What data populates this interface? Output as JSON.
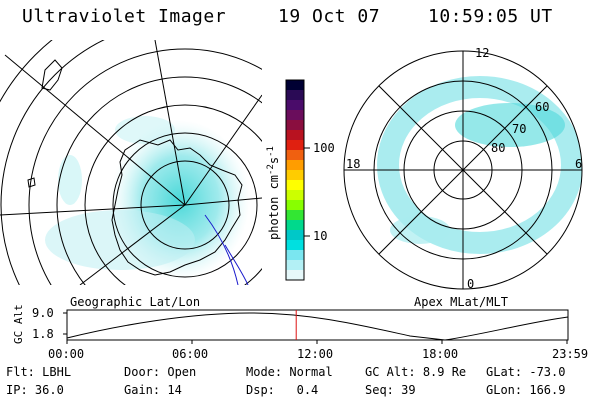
{
  "header": {
    "title": "Ultraviolet Imager",
    "date": "19 Oct 07",
    "time": "10:59:05 UT"
  },
  "left_map": {
    "label": "Geographic Lat/Lon"
  },
  "right_map": {
    "label": "Apex MLat/MLT",
    "mlt_labels": {
      "top": "12",
      "left": "18",
      "right": "6",
      "bottom": "0"
    },
    "lat_labels": [
      "60",
      "70",
      "80"
    ]
  },
  "colorbar": {
    "unit": "photon cm-2s-1",
    "unit_main": "photon cm",
    "unit_sup1": "-2",
    "unit_mid": "s",
    "unit_sup2": "-1",
    "ticks": [
      "100",
      "10"
    ],
    "colors": [
      "#000033",
      "#2a0a55",
      "#4a0c6a",
      "#6a0d5c",
      "#8a0e3f",
      "#b81220",
      "#e02010",
      "#f06010",
      "#ff9d00",
      "#ffcc00",
      "#ffff00",
      "#ccff00",
      "#88ff00",
      "#33e633",
      "#00d98c",
      "#00c8c8",
      "#00e0e0",
      "#7ae6f0",
      "#b3f0f5",
      "#e6f8fa"
    ]
  },
  "altitude_plot": {
    "ylabel": "GC Alt",
    "yticks": [
      "9.0",
      "1.8"
    ],
    "xticks": [
      "00:00",
      "06:00",
      "12:00",
      "18:00",
      "23:59"
    ],
    "marker_time_hours": 10.98
  },
  "info": {
    "row1": [
      {
        "label": "Flt:",
        "value": "LBHL"
      },
      {
        "label": "Door:",
        "value": "Open"
      },
      {
        "label": "Mode:",
        "value": "Normal"
      },
      {
        "label": "GC Alt:",
        "value": "8.9 Re"
      },
      {
        "label": "GLat:",
        "value": "-73.0"
      }
    ],
    "row2": [
      {
        "label": "IP:",
        "value": "36.0"
      },
      {
        "label": "Gain:",
        "value": "14"
      },
      {
        "label": "Dsp:",
        "value": "0.4"
      },
      {
        "label": "Seq:",
        "value": "39"
      },
      {
        "label": "GLon:",
        "value": "166.9"
      }
    ]
  },
  "colors": {
    "aurora_cyan": "#3fd6d6",
    "aurora_light": "#a8ecef",
    "coast_blue": "#1a1acc",
    "marker_red": "#d11"
  }
}
